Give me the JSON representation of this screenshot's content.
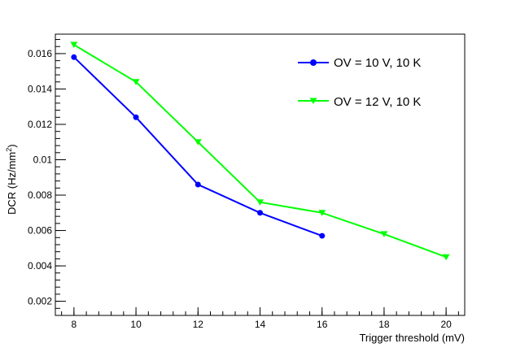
{
  "chart_data": {
    "type": "line",
    "title": "",
    "xlabel": "Trigger threshold (mV)",
    "ylabel_parts": {
      "main": "DCR (Hz/mm",
      "sup": "2",
      "tail": ")"
    },
    "xlim": [
      7.4,
      20.6
    ],
    "ylim": [
      0.0012,
      0.0171
    ],
    "xticks": [
      8,
      10,
      12,
      14,
      16,
      18,
      20
    ],
    "yticks": [
      0.002,
      0.004,
      0.006,
      0.008,
      0.01,
      0.012,
      0.014,
      0.016
    ],
    "ytick_labels": [
      "0.002",
      "0.004",
      "0.006",
      "0.008",
      "0.01",
      "0.012",
      "0.014",
      "0.016"
    ],
    "legend_position": "top-right",
    "series": [
      {
        "name": "OV = 10 V, 10 K",
        "color": "#0000ff",
        "marker": "circle",
        "x": [
          8,
          10,
          12,
          14,
          16
        ],
        "y": [
          0.0158,
          0.0124,
          0.0086,
          0.007,
          0.0057
        ]
      },
      {
        "name": "OV = 12 V, 10 K",
        "color": "#00ff00",
        "marker": "triangle-down",
        "x": [
          8,
          10,
          12,
          14,
          16,
          18,
          20
        ],
        "y": [
          0.0165,
          0.0144,
          0.011,
          0.0076,
          0.007,
          0.0058,
          0.0045
        ]
      }
    ]
  }
}
